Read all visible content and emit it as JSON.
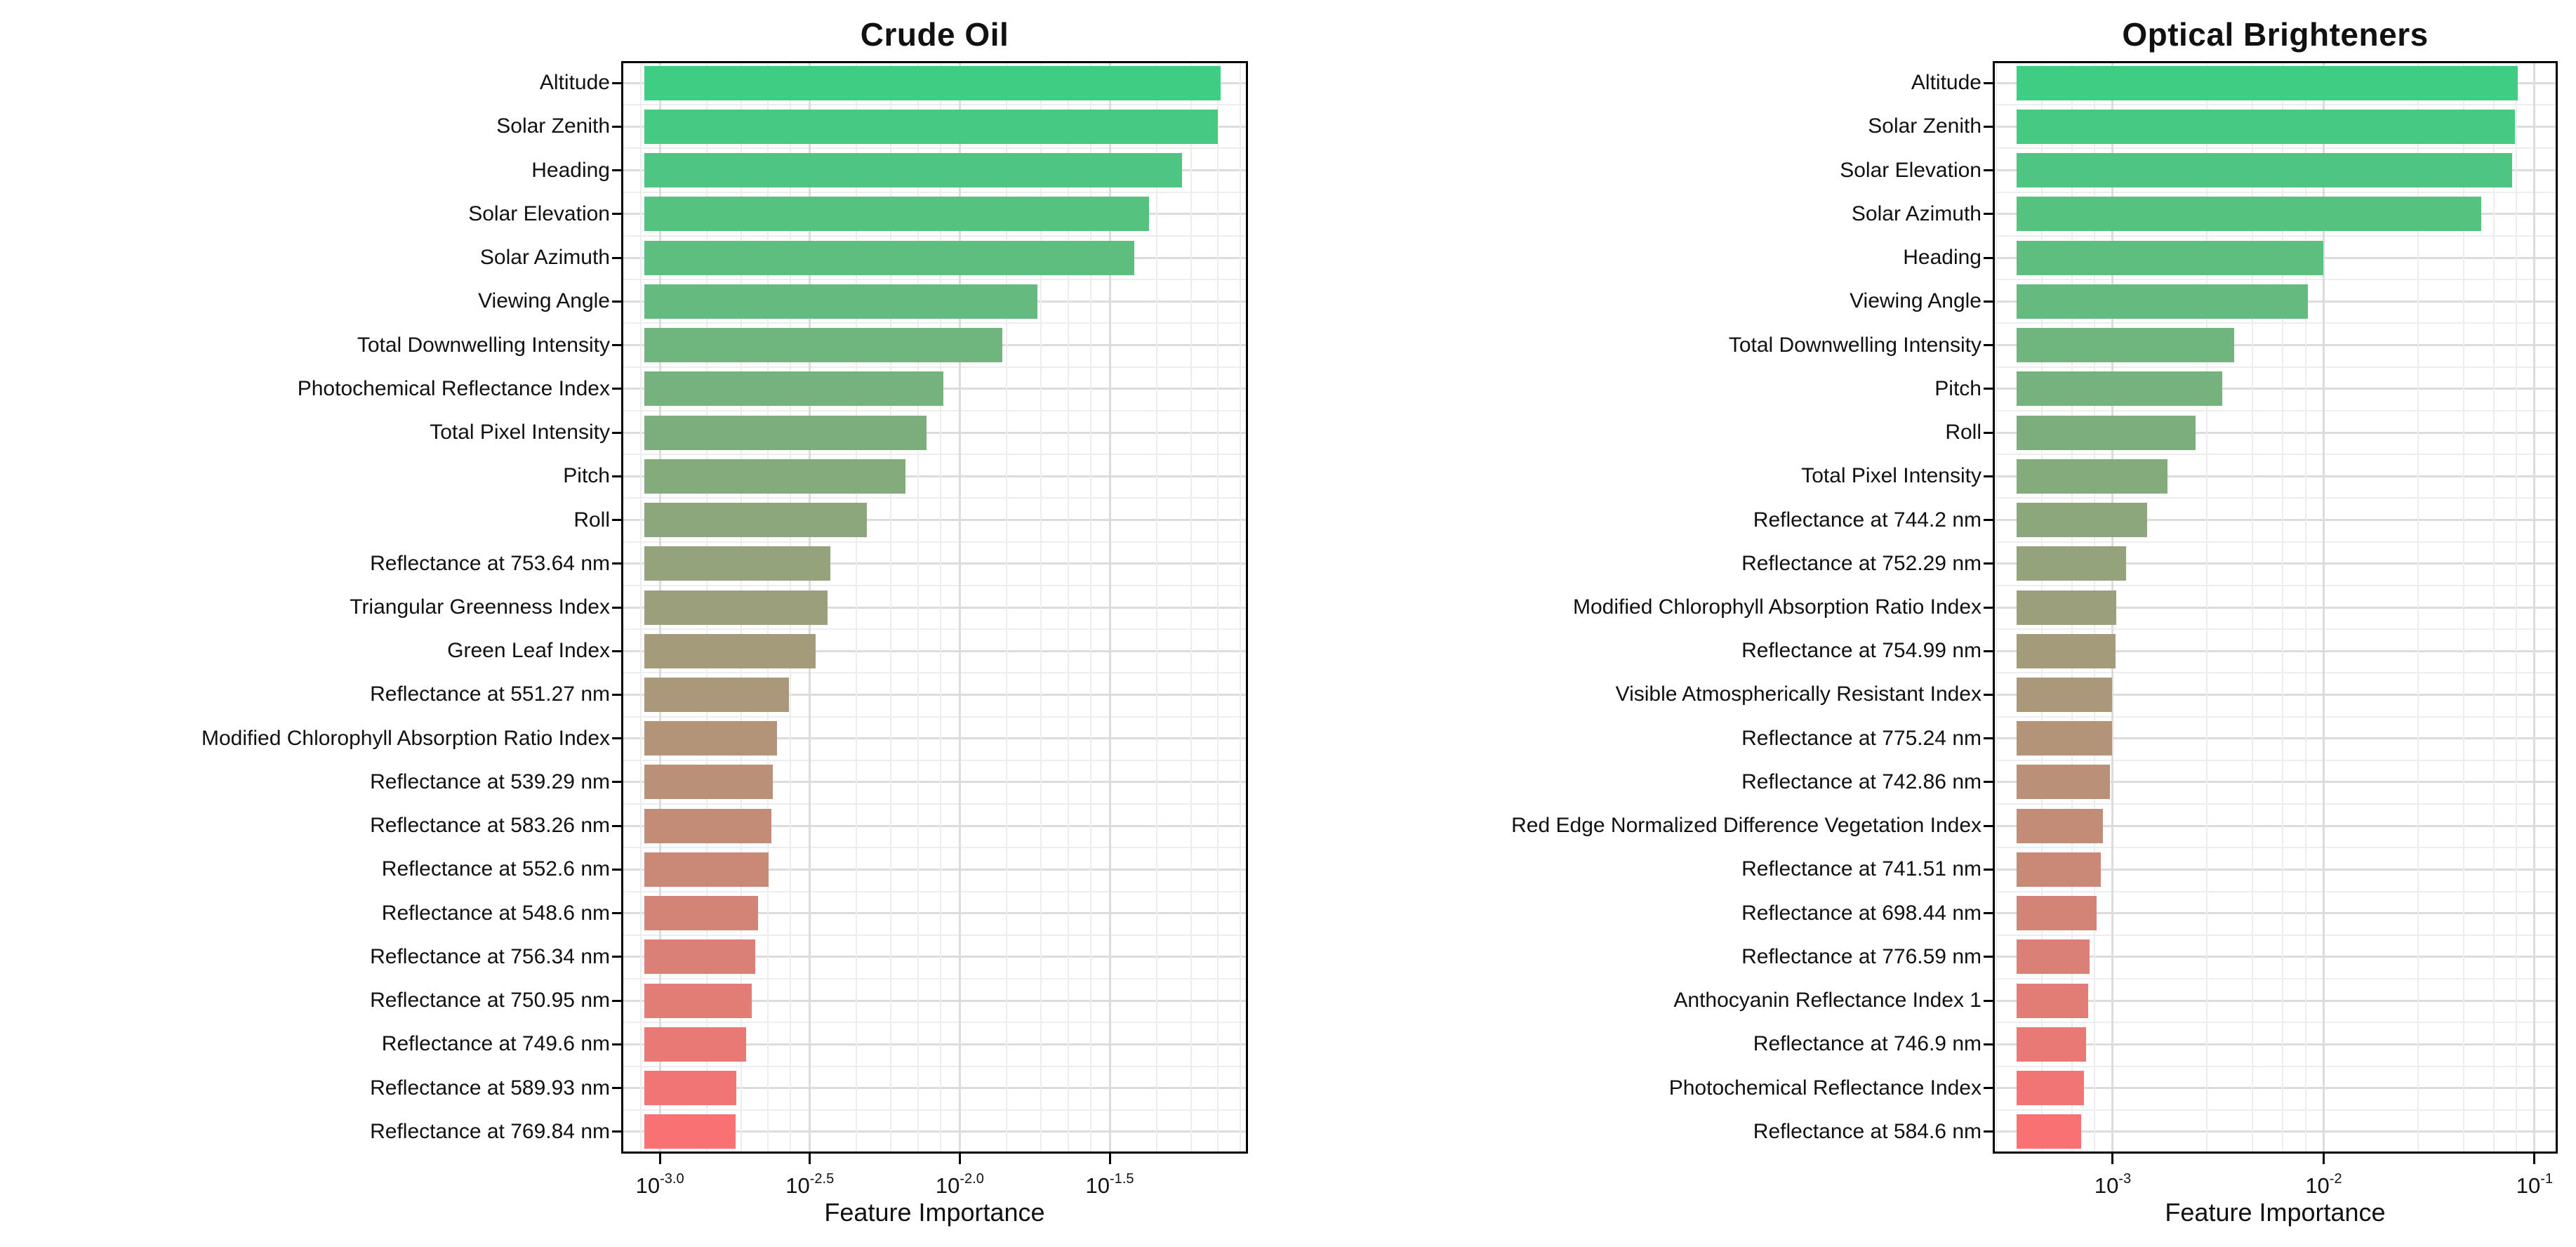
{
  "chart_data": [
    {
      "type": "bar",
      "orientation": "horizontal",
      "title": "Crude Oil",
      "xlabel": "Feature Importance",
      "x_scale": "log",
      "grid": true,
      "legend": false,
      "axis": {
        "xmin_log": -3.129,
        "xmax_log": -1.039,
        "bar_base_log": -3.051,
        "major_ticks_log": [
          -3.0,
          -2.5,
          -2.0,
          -1.5
        ],
        "tick_exponents": [
          "-3.0",
          "-2.5",
          "-2.0",
          "-1.5"
        ],
        "major_step_decades": 0.5
      },
      "categories": [
        "Altitude",
        "Solar Zenith",
        "Heading",
        "Solar Elevation",
        "Solar Azimuth",
        "Viewing Angle",
        "Total Downwelling Intensity",
        "Photochemical Reflectance Index",
        "Total Pixel Intensity",
        "Pitch",
        "Roll",
        "Reflectance at 753.64 nm",
        "Triangular Greenness Index",
        "Green Leaf Index",
        "Reflectance at 551.27 nm",
        "Modified Chlorophyll Absorption Ratio Index",
        "Reflectance at 539.29 nm",
        "Reflectance at 583.26 nm",
        "Reflectance at 552.6 nm",
        "Reflectance at 548.6 nm",
        "Reflectance at 756.34 nm",
        "Reflectance at 750.95 nm",
        "Reflectance at 749.6 nm",
        "Reflectance at 589.93 nm",
        "Reflectance at 769.84 nm"
      ],
      "values": [
        0.0741,
        0.0726,
        0.0551,
        0.0428,
        0.0382,
        0.0182,
        0.0139,
        0.0088,
        0.00775,
        0.0066,
        0.0049,
        0.0037,
        0.00362,
        0.0033,
        0.0027,
        0.00246,
        0.00238,
        0.00236,
        0.0023,
        0.00212,
        0.00208,
        0.00203,
        0.00194,
        0.0018,
        0.00179
      ]
    },
    {
      "type": "bar",
      "orientation": "horizontal",
      "title": "Optical Brighteners",
      "xlabel": "Feature Importance",
      "x_scale": "log",
      "grid": true,
      "legend": false,
      "axis": {
        "xmin_log": -3.569,
        "xmax_log": -0.89,
        "bar_base_log": -3.456,
        "major_ticks_log": [
          -3,
          -2,
          -1
        ],
        "tick_exponents": [
          "-3",
          "-2",
          "-1"
        ],
        "major_step_decades": 1
      },
      "categories": [
        "Altitude",
        "Solar Zenith",
        "Solar Elevation",
        "Solar Azimuth",
        "Heading",
        "Viewing Angle",
        "Total Downwelling Intensity",
        "Pitch",
        "Roll",
        "Total Pixel Intensity",
        "Reflectance at 744.2 nm",
        "Reflectance at 752.29 nm",
        "Modified Chlorophyll Absorption Ratio Index",
        "Reflectance at 754.99 nm",
        "Visible Atmospherically Resistant Index",
        "Reflectance at 775.24 nm",
        "Reflectance at 742.86 nm",
        "Red Edge Normalized Difference Vegetation Index",
        "Reflectance at 741.51 nm",
        "Reflectance at 698.44 nm",
        "Reflectance at 776.59 nm",
        "Anthocyanin Reflectance Index 1",
        "Reflectance at 746.9 nm",
        "Photochemical Reflectance Index",
        "Reflectance at 584.6 nm"
      ],
      "values": [
        0.083,
        0.0807,
        0.0784,
        0.0559,
        0.01,
        0.00845,
        0.00377,
        0.0033,
        0.00247,
        0.00182,
        0.00146,
        0.00116,
        0.00104,
        0.00103,
        0.000995,
        0.00099,
        0.00097,
        0.0009,
        0.00088,
        0.00084,
        0.000775,
        0.000765,
        0.00075,
        0.00073,
        0.00071
      ]
    }
  ],
  "style": {
    "bar_color_top": "#3ECD82",
    "bar_color_bottom": "#F97173",
    "grid_major": "#DCDCDC",
    "grid_minor": "#EDEDED",
    "panel_border": "#000000",
    "text_color": "#111111",
    "background": "#FFFFFF"
  }
}
